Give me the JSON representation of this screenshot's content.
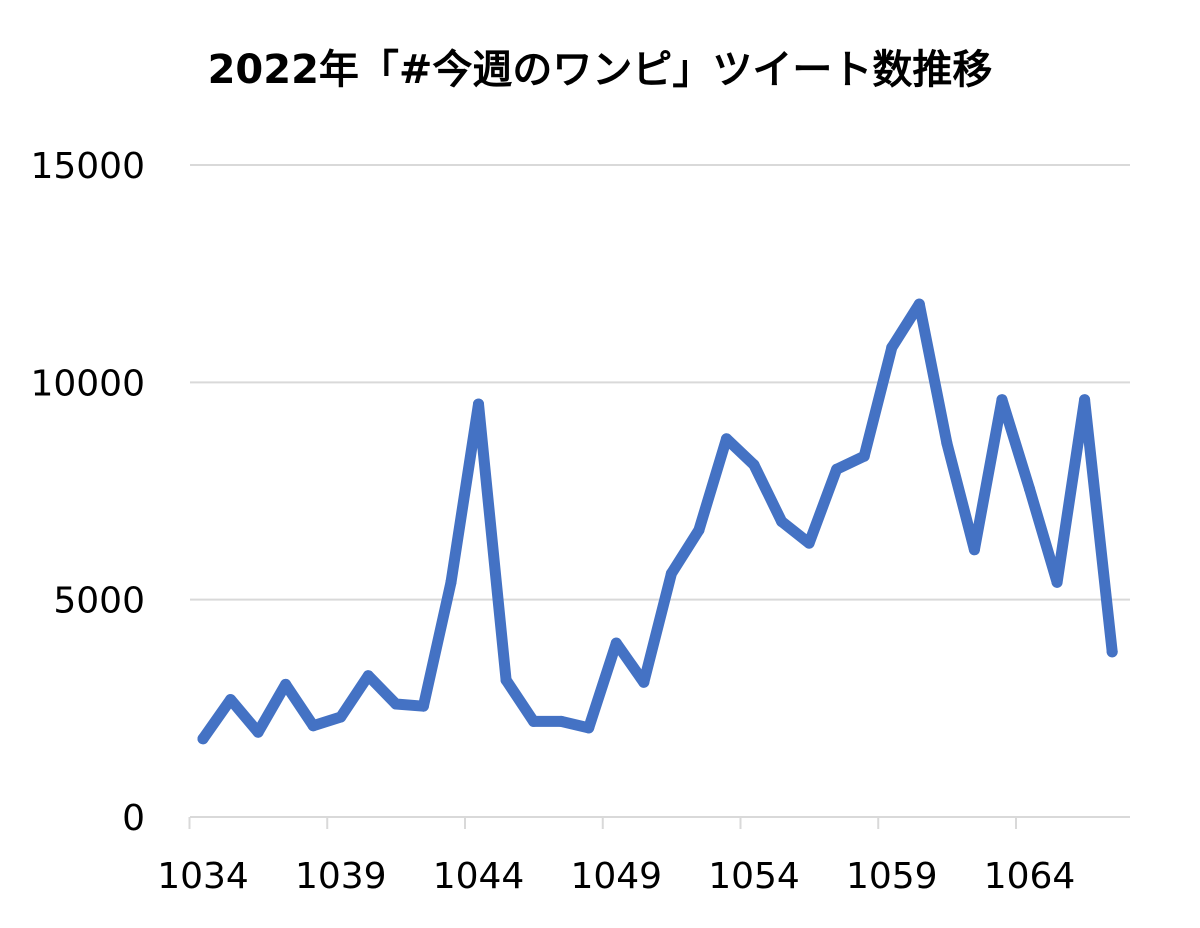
{
  "chart_data": {
    "type": "line",
    "title": "2022年「#今週のワンピ」ツイート数推移",
    "xlabel": "",
    "ylabel": "",
    "x": [
      1034,
      1035,
      1036,
      1037,
      1038,
      1039,
      1040,
      1041,
      1042,
      1043,
      1044,
      1045,
      1046,
      1047,
      1048,
      1049,
      1050,
      1051,
      1052,
      1053,
      1054,
      1055,
      1056,
      1057,
      1058,
      1059,
      1060,
      1061,
      1062,
      1063,
      1064,
      1065,
      1066,
      1067
    ],
    "xticks": [
      "1034",
      "1039",
      "1044",
      "1049",
      "1054",
      "1059",
      "1064"
    ],
    "ylim": [
      0,
      15000
    ],
    "yticks": [
      "0",
      "5000",
      "10000",
      "15000"
    ],
    "grid": "horizontal",
    "legend": "none",
    "series": [
      {
        "color": "#4472C4",
        "values": [
          1800,
          2700,
          1950,
          3050,
          2100,
          2300,
          3250,
          2600,
          2550,
          5400,
          9500,
          3150,
          2200,
          2200,
          2050,
          4000,
          3100,
          5600,
          6600,
          8700,
          8100,
          6800,
          6300,
          8000,
          8300,
          10800,
          11800,
          8600,
          6150,
          9600,
          7550,
          5400,
          9600,
          3800
        ]
      }
    ]
  }
}
